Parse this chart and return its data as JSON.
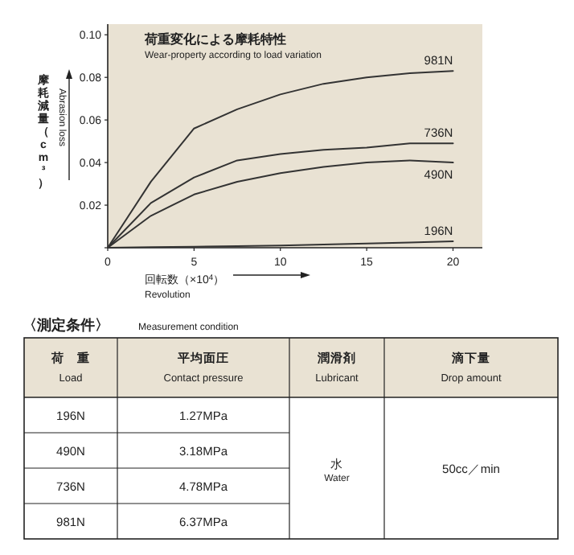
{
  "chart_data": {
    "type": "line",
    "title": "荷重変化による摩耗特性",
    "subtitle": "Wear-property according to load variation",
    "xlabel": "回転数（×10$^{4}$）",
    "ylabel": "摩耗減量（cm³）",
    "x": [
      0,
      2.5,
      5,
      7.5,
      10,
      12.5,
      15,
      17.5,
      20
    ],
    "series": [
      {
        "name": "981N",
        "color": "#333333",
        "values": [
          0,
          0.031,
          0.056,
          0.065,
          0.072,
          0.077,
          0.08,
          0.082,
          0.083
        ]
      },
      {
        "name": "736N",
        "color": "#333333",
        "values": [
          0,
          0.021,
          0.033,
          0.041,
          0.044,
          0.046,
          0.047,
          0.049,
          0.049
        ]
      },
      {
        "name": "490N",
        "color": "#333333",
        "values": [
          0,
          0.015,
          0.025,
          0.031,
          0.035,
          0.038,
          0.04,
          0.041,
          0.04
        ]
      },
      {
        "name": "196N",
        "color": "#333333",
        "values": [
          0,
          0.0003,
          0.0005,
          0.0008,
          0.001,
          0.0015,
          0.002,
          0.0025,
          0.003
        ]
      }
    ],
    "xlim": [
      0,
      21.7
    ],
    "ylim": [
      0,
      0.105
    ],
    "xticks": [
      0,
      5,
      10,
      15,
      20
    ],
    "yticks": [
      {
        "value": 0,
        "label": null
      },
      0.02,
      0.04,
      0.06,
      0.08,
      {
        "value": 0.1,
        "label": "0.10"
      }
    ],
    "grid": false,
    "legend": false,
    "marker": "none",
    "line_style": "solid",
    "annotations": [
      "Abrasion loss",
      "Revolution",
      "〈測定条件〉",
      "Measurement condition",
      "荷　重",
      "Load",
      "平均面圧",
      "Contact pressure",
      "潤滑剤",
      "Lubricant",
      "滴下量",
      "Drop amount",
      "196N",
      "1.27MPa",
      "490N",
      "3.18MPa",
      "736N",
      "4.78MPa",
      "981N",
      "6.37MPa",
      "水",
      "Water",
      "50cc／min"
    ]
  }
}
